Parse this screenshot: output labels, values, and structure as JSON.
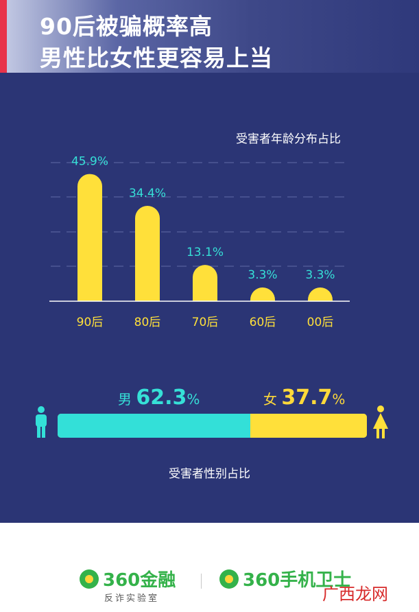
{
  "header": {
    "title_line1": "90后被骗概率高",
    "title_line2": "男性比女性更容易上当"
  },
  "chart_data": [
    {
      "type": "bar",
      "title": "受害者年龄分布占比",
      "categories": [
        "90后",
        "80后",
        "70后",
        "60后",
        "00后"
      ],
      "values": [
        45.9,
        34.4,
        13.1,
        3.3,
        3.3
      ],
      "value_labels": [
        "45.9%",
        "34.4%",
        "13.1%",
        "3.3%",
        "3.3%"
      ],
      "bar_color": "#ffe03a",
      "label_color": "#36e0d7",
      "grid": true
    },
    {
      "type": "bar",
      "orientation": "horizontal-stacked",
      "title": "受害者性别占比",
      "categories": [
        "男",
        "女"
      ],
      "values": [
        62.3,
        37.7
      ],
      "colors": [
        "#33e0d8",
        "#ffe03a"
      ]
    }
  ],
  "gender": {
    "male_label": "男",
    "male_value": "62.3",
    "female_label": "女",
    "female_value": "37.7",
    "unit": "%"
  },
  "footer": {
    "logo1_name": "360金融",
    "logo1_sub": "反诈实验室",
    "logo2_name": "360手机卫士",
    "watermark": "广西龙网"
  },
  "colors": {
    "background": "#2b3575",
    "accent_red": "#e8334a",
    "yellow": "#ffe03a",
    "cyan": "#33e0d8"
  }
}
